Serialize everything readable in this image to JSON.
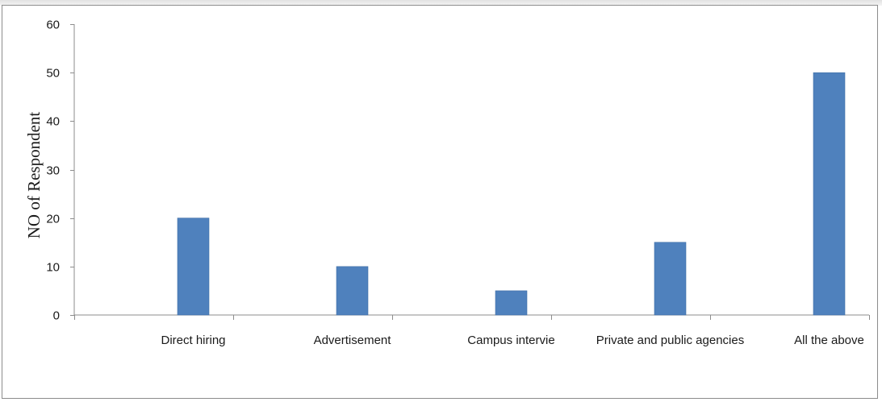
{
  "chart_data": {
    "type": "bar",
    "categories": [
      "Direct hiring",
      "Advertisement",
      "Campus interview",
      "Private and public agencies",
      "All the above"
    ],
    "category_labels": [
      "Direct hiring",
      "Advertisement",
      "Campus intervie",
      "Private and public agencies",
      "All the above"
    ],
    "values": [
      20,
      10,
      5,
      15,
      50
    ],
    "title": "",
    "xlabel": "",
    "ylabel": "NO of Respondent",
    "ylim": [
      0,
      60
    ],
    "y_ticks": [
      0,
      10,
      20,
      30,
      40,
      50,
      60
    ],
    "grid": false,
    "legend": "none",
    "bar_color": "#4f81bd",
    "bar_edge_color": "#3f6ea6",
    "axis_color": "#8c8c8c"
  }
}
